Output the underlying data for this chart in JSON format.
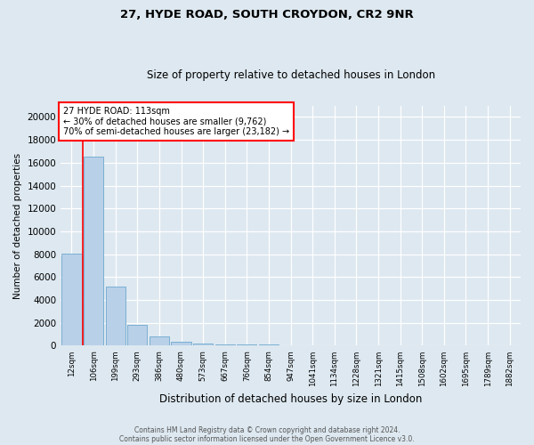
{
  "title1": "27, HYDE ROAD, SOUTH CROYDON, CR2 9NR",
  "title2": "Size of property relative to detached houses in London",
  "xlabel": "Distribution of detached houses by size in London",
  "ylabel": "Number of detached properties",
  "categories": [
    "12sqm",
    "106sqm",
    "199sqm",
    "293sqm",
    "386sqm",
    "480sqm",
    "573sqm",
    "667sqm",
    "760sqm",
    "854sqm",
    "947sqm",
    "1041sqm",
    "1134sqm",
    "1228sqm",
    "1321sqm",
    "1415sqm",
    "1508sqm",
    "1602sqm",
    "1695sqm",
    "1789sqm",
    "1882sqm"
  ],
  "values": [
    8050,
    16500,
    5200,
    1800,
    800,
    380,
    210,
    150,
    100,
    100,
    30,
    0,
    0,
    0,
    0,
    0,
    0,
    0,
    0,
    0,
    0
  ],
  "bar_color": "#b8d0e8",
  "bar_edge_color": "#7aafd4",
  "red_line_x": 0.5,
  "annotation_line1": "27 HYDE ROAD: 113sqm",
  "annotation_line2": "← 30% of detached houses are smaller (9,762)",
  "annotation_line3": "70% of semi-detached houses are larger (23,182) →",
  "footer1": "Contains HM Land Registry data © Crown copyright and database right 2024.",
  "footer2": "Contains public sector information licensed under the Open Government Licence v3.0.",
  "ylim": [
    0,
    21000
  ],
  "yticks": [
    0,
    2000,
    4000,
    6000,
    8000,
    10000,
    12000,
    14000,
    16000,
    18000,
    20000
  ],
  "bg_color": "#dde8f0",
  "plot_bg_color": "#dde8f0",
  "grid_color": "#c0cfe0"
}
